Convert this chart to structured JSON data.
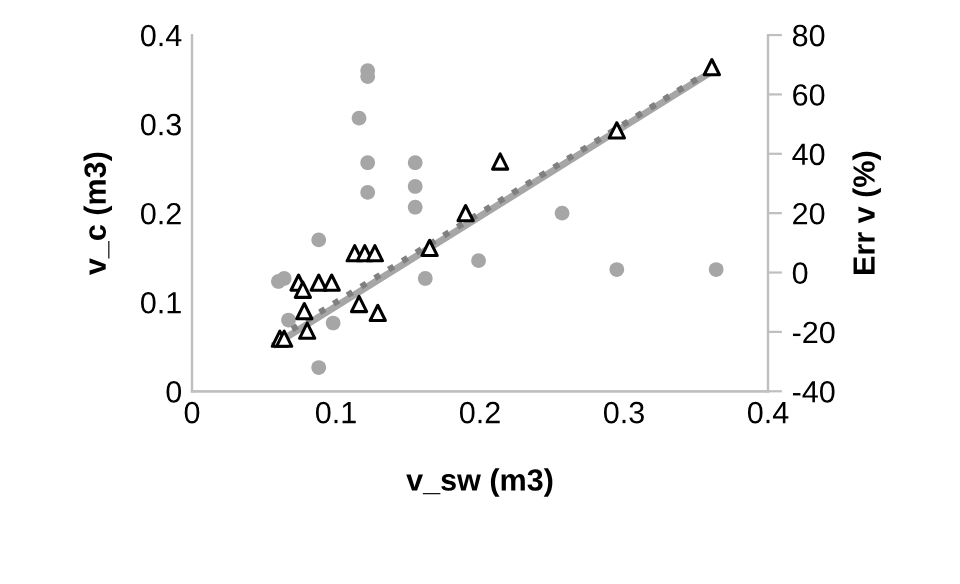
{
  "chart_data": {
    "type": "scatter",
    "xlabel": "v_sw (m3)",
    "ylabel": "v_c (m3)",
    "y2label": "Err v (%)",
    "xlim": [
      0,
      0.4
    ],
    "xticks": [
      0,
      0.1,
      0.2,
      0.3,
      0.4
    ],
    "ylim": [
      0,
      0.4
    ],
    "yticks": [
      0,
      0.1,
      0.2,
      0.3,
      0.4
    ],
    "y2lim": [
      -40,
      80
    ],
    "y2ticks": [
      -40,
      -20,
      0,
      20,
      40,
      60,
      80
    ],
    "grid": false,
    "legend": false,
    "series": [
      {
        "type": "scatter",
        "axis": "y2",
        "color": "#a6a6a6",
        "marker": "circle",
        "x": [
          0.06,
          0.064,
          0.067,
          0.088,
          0.098,
          0.088,
          0.122,
          0.122,
          0.116,
          0.122,
          0.122,
          0.155,
          0.155,
          0.155,
          0.162,
          0.199,
          0.257,
          0.295,
          0.364
        ],
        "values": [
          -3,
          -2,
          -16,
          11,
          -17,
          -32,
          68,
          66,
          52,
          37,
          27,
          37,
          29,
          22,
          -2,
          4,
          20,
          1,
          1
        ]
      },
      {
        "type": "line",
        "color": "#a6a6a6",
        "marker": "none",
        "line_style": "solid",
        "x": [
          0.058,
          0.362
        ],
        "values": [
          0.053,
          0.36
        ]
      },
      {
        "type": "line",
        "color": "#808080",
        "marker": "none",
        "line_style": "dotted",
        "x": [
          0.06,
          0.362
        ],
        "values": [
          0.06,
          0.362
        ]
      },
      {
        "color": "#000000",
        "marker": "triangle",
        "x": [
          0.061,
          0.064,
          0.074,
          0.077,
          0.078,
          0.08,
          0.088,
          0.097,
          0.113,
          0.12,
          0.127,
          0.116,
          0.129,
          0.165,
          0.19,
          0.214,
          0.295,
          0.361
        ],
        "values": [
          0.059,
          0.059,
          0.122,
          0.114,
          0.09,
          0.068,
          0.122,
          0.122,
          0.155,
          0.155,
          0.155,
          0.098,
          0.088,
          0.161,
          0.2,
          0.258,
          0.293,
          0.364
        ]
      }
    ]
  }
}
